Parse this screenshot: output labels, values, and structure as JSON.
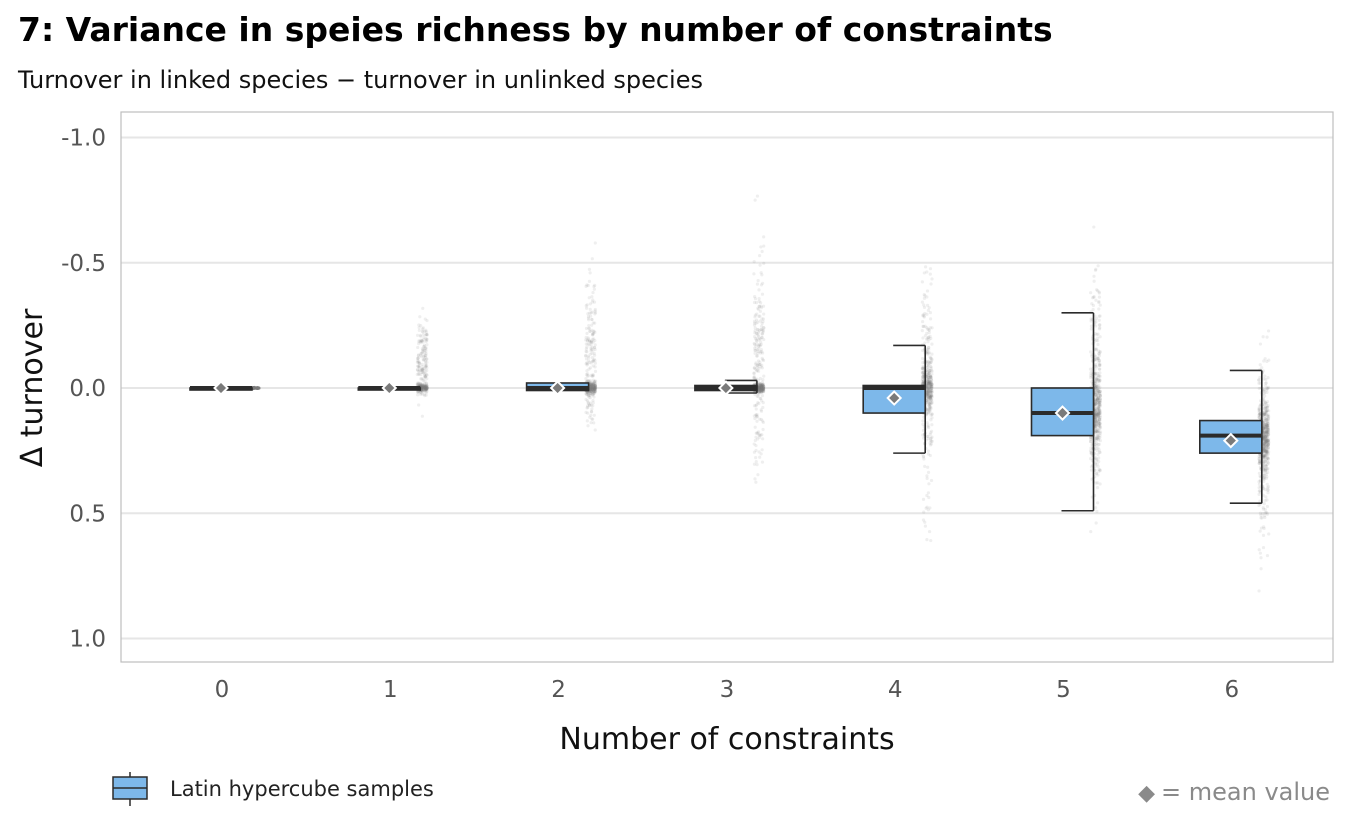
{
  "title": "7: Variance in speies richness by number of constraints",
  "subtitle": "Turnover in linked species − turnover in unlinked species",
  "legend": {
    "label": "Latin hypercube samples",
    "swatch_color": "#7db8ea"
  },
  "footnote": {
    "symbol": "◆",
    "text": "= mean  value"
  },
  "colors": {
    "box_fill": "#7db8ea",
    "box_line": "#2b2b2b",
    "points": "#7a7a7a",
    "grid": "#e6e6e6",
    "panel_border": "#bdbdbd"
  },
  "chart_data": {
    "type": "box",
    "title": "7: Variance in speies richness by number of constraints",
    "subtitle": "Turnover in linked species − turnover in unlinked species",
    "xlabel": "Number of constraints",
    "ylabel": "Δ turnover",
    "y_reversed": true,
    "ylim": [
      -1.1,
      1.1
    ],
    "y_ticks": [
      -1.0,
      -0.5,
      0.0,
      0.5,
      1.0
    ],
    "y_tick_labels": [
      "-1.0",
      "-0.5",
      "0.0",
      "0.5",
      "1.0"
    ],
    "categories": [
      "0",
      "1",
      "2",
      "3",
      "4",
      "5",
      "6"
    ],
    "boxes": [
      {
        "category": "0",
        "lower_whisker": 0.0,
        "q1": 0.0,
        "median": 0.0,
        "q3": 0.0,
        "upper_whisker": 0.0,
        "mean": 0.0
      },
      {
        "category": "1",
        "lower_whisker": 0.0,
        "q1": 0.0,
        "median": 0.0,
        "q3": 0.0,
        "upper_whisker": 0.0,
        "mean": 0.0
      },
      {
        "category": "2",
        "lower_whisker": -0.02,
        "q1": -0.02,
        "median": 0.0,
        "q3": 0.01,
        "upper_whisker": 0.01,
        "mean": 0.0
      },
      {
        "category": "3",
        "lower_whisker": -0.03,
        "q1": -0.01,
        "median": 0.0,
        "q3": 0.01,
        "upper_whisker": 0.02,
        "mean": 0.0
      },
      {
        "category": "4",
        "lower_whisker": -0.17,
        "q1": -0.01,
        "median": 0.0,
        "q3": 0.1,
        "upper_whisker": 0.26,
        "mean": 0.04
      },
      {
        "category": "5",
        "lower_whisker": -0.3,
        "q1": 0.0,
        "median": 0.1,
        "q3": 0.19,
        "upper_whisker": 0.49,
        "mean": 0.1
      },
      {
        "category": "6",
        "lower_whisker": -0.07,
        "q1": 0.13,
        "median": 0.19,
        "q3": 0.26,
        "upper_whisker": 0.46,
        "mean": 0.21
      }
    ],
    "point_spread": [
      {
        "category": "0",
        "min": -0.01,
        "max": 0.01
      },
      {
        "category": "1",
        "min": -0.42,
        "max": 0.18
      },
      {
        "category": "2",
        "min": -0.72,
        "max": 0.46
      },
      {
        "category": "3",
        "min": -0.88,
        "max": 0.73
      },
      {
        "category": "4",
        "min": -0.86,
        "max": 0.88
      },
      {
        "category": "5",
        "min": -0.82,
        "max": 0.9
      },
      {
        "category": "6",
        "min": -0.38,
        "max": 0.86
      }
    ],
    "grid": true,
    "legend_position": "bottom-left"
  }
}
